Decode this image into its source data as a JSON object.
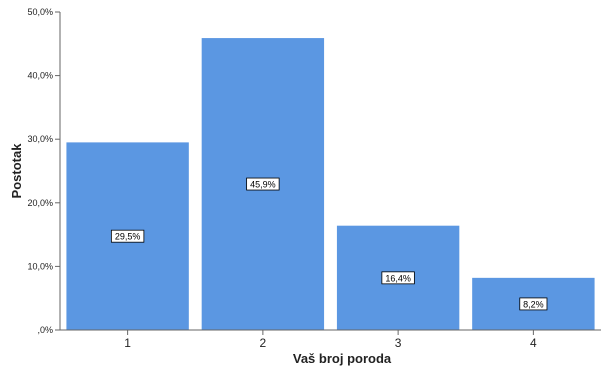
{
  "chart_data": {
    "type": "bar",
    "categories": [
      "1",
      "2",
      "3",
      "4"
    ],
    "values": [
      29.5,
      45.9,
      16.4,
      8.2
    ],
    "data_labels": [
      "29,5%",
      "45,9%",
      "16,4%",
      "8,2%"
    ],
    "xlabel": "Vaš broj poroda",
    "ylabel": "Postotak",
    "ylim": [
      0,
      50
    ],
    "yticks": [
      0,
      10,
      20,
      30,
      40,
      50
    ],
    "ytick_labels": [
      ",0%",
      "10,0%",
      "20,0%",
      "30,0%",
      "40,0%",
      "50,0%"
    ],
    "bar_color": "#5b97e2",
    "grid": false,
    "legend": "none"
  }
}
